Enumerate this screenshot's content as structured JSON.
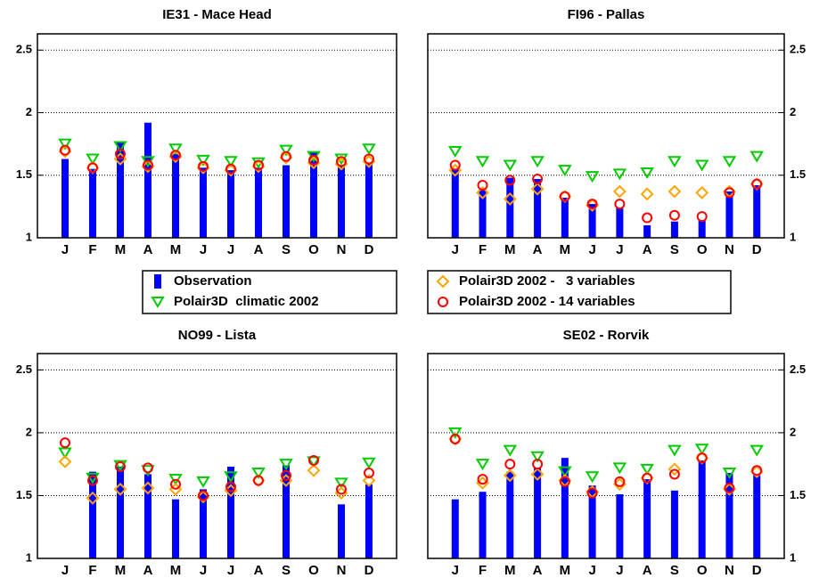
{
  "chart_data": [
    {
      "type": "bar_marker",
      "title": "IE31 - Mace Head",
      "categories": [
        "J",
        "F",
        "M",
        "A",
        "M",
        "J",
        "J",
        "A",
        "S",
        "O",
        "N",
        "D"
      ],
      "ylim": [
        1,
        2.63
      ],
      "yticks": [
        1,
        1.5,
        2,
        2.5
      ],
      "grid": true,
      "series": [
        {
          "name": "Observation",
          "color": "#0000ff",
          "marker": "bar",
          "values": [
            1.63,
            1.55,
            1.76,
            1.92,
            1.67,
            1.56,
            1.54,
            1.56,
            1.58,
            1.68,
            1.58,
            1.6
          ]
        },
        {
          "name": "Polair3D  climatic 2002",
          "color": "#00cc00",
          "marker": "triangle",
          "values": [
            1.75,
            1.63,
            1.73,
            1.61,
            1.71,
            1.62,
            1.61,
            1.6,
            1.7,
            1.65,
            1.63,
            1.71
          ]
        },
        {
          "name": "Polair3D 2002 -   3 variables",
          "color": "#ffa500",
          "marker": "diamond",
          "values": [
            1.69,
            1.56,
            1.63,
            1.57,
            1.65,
            1.56,
            1.54,
            1.57,
            1.64,
            1.6,
            1.59,
            1.61
          ]
        },
        {
          "name": "Polair3D 2002 - 14 variables",
          "color": "#ff0000",
          "marker": "circle",
          "values": [
            1.7,
            1.56,
            1.67,
            1.58,
            1.66,
            1.57,
            1.55,
            1.58,
            1.65,
            1.62,
            1.61,
            1.63
          ]
        }
      ]
    },
    {
      "type": "bar_marker",
      "title": "FI96 - Pallas",
      "categories": [
        "J",
        "F",
        "M",
        "A",
        "M",
        "J",
        "J",
        "A",
        "S",
        "O",
        "N",
        "D"
      ],
      "ylim": [
        1,
        2.63
      ],
      "yticks": [
        1,
        1.5,
        2,
        2.5
      ],
      "grid": true,
      "series": [
        {
          "color": "#0000ff",
          "marker": "bar",
          "values": [
            1.55,
            1.38,
            1.48,
            1.47,
            1.32,
            1.27,
            1.24,
            1.1,
            1.13,
            1.14,
            1.37,
            1.42
          ]
        },
        {
          "color": "#00cc00",
          "marker": "triangle",
          "values": [
            1.69,
            1.61,
            1.58,
            1.61,
            1.54,
            1.49,
            1.51,
            1.52,
            1.61,
            1.58,
            1.61,
            1.65
          ]
        },
        {
          "color": "#ffa500",
          "marker": "diamond",
          "values": [
            1.54,
            1.36,
            1.31,
            1.39,
            1.33,
            1.26,
            1.37,
            1.35,
            1.37,
            1.36,
            1.37,
            1.43
          ]
        },
        {
          "color": "#ff0000",
          "marker": "circle",
          "values": [
            1.58,
            1.42,
            1.46,
            1.47,
            1.33,
            1.27,
            1.27,
            1.16,
            1.18,
            1.17,
            1.36,
            1.43
          ]
        }
      ]
    },
    {
      "type": "bar_marker",
      "title": "NO99 - Lista",
      "categories": [
        "J",
        "F",
        "M",
        "A",
        "M",
        "J",
        "J",
        "A",
        "S",
        "O",
        "N",
        "D"
      ],
      "ylim": [
        1,
        2.63
      ],
      "yticks": [
        1,
        1.5,
        2,
        2.5
      ],
      "grid": true,
      "series": [
        {
          "color": "#0000ff",
          "marker": "bar",
          "values": [
            null,
            1.69,
            1.73,
            1.67,
            1.47,
            1.55,
            1.73,
            null,
            1.74,
            null,
            1.43,
            1.59
          ]
        },
        {
          "color": "#00cc00",
          "marker": "triangle",
          "values": [
            1.84,
            1.64,
            1.74,
            1.7,
            1.63,
            1.61,
            1.65,
            1.68,
            1.75,
            1.77,
            1.6,
            1.76
          ]
        },
        {
          "color": "#ffa500",
          "marker": "diamond",
          "values": [
            1.77,
            1.48,
            1.55,
            1.56,
            1.55,
            1.49,
            1.54,
            1.62,
            1.62,
            1.7,
            1.52,
            1.62
          ]
        },
        {
          "color": "#ff0000",
          "marker": "circle",
          "values": [
            1.92,
            1.62,
            1.73,
            1.72,
            1.59,
            1.5,
            1.57,
            1.62,
            1.66,
            1.78,
            1.55,
            1.68
          ]
        }
      ]
    },
    {
      "type": "bar_marker",
      "title": "SE02 - Rorvik",
      "categories": [
        "J",
        "F",
        "M",
        "A",
        "M",
        "J",
        "J",
        "A",
        "S",
        "O",
        "N",
        "D"
      ],
      "ylim": [
        1,
        2.63
      ],
      "yticks": [
        1,
        1.5,
        2,
        2.5
      ],
      "grid": true,
      "series": [
        {
          "color": "#0000ff",
          "marker": "bar",
          "values": [
            1.47,
            1.53,
            1.69,
            1.72,
            1.8,
            1.58,
            1.51,
            1.63,
            1.54,
            1.78,
            1.68,
            1.67
          ]
        },
        {
          "color": "#00cc00",
          "marker": "triangle",
          "values": [
            2.0,
            1.75,
            1.86,
            1.81,
            1.69,
            1.65,
            1.72,
            1.71,
            1.86,
            1.87,
            1.68,
            1.86
          ]
        },
        {
          "color": "#ffa500",
          "marker": "diamond",
          "values": [
            1.95,
            1.6,
            1.66,
            1.67,
            1.62,
            1.53,
            1.59,
            1.64,
            1.71,
            1.8,
            1.55,
            1.69
          ]
        },
        {
          "color": "#ff0000",
          "marker": "circle",
          "values": [
            1.95,
            1.63,
            1.75,
            1.75,
            1.61,
            1.52,
            1.61,
            1.64,
            1.67,
            1.8,
            1.56,
            1.7
          ]
        }
      ]
    }
  ]
}
